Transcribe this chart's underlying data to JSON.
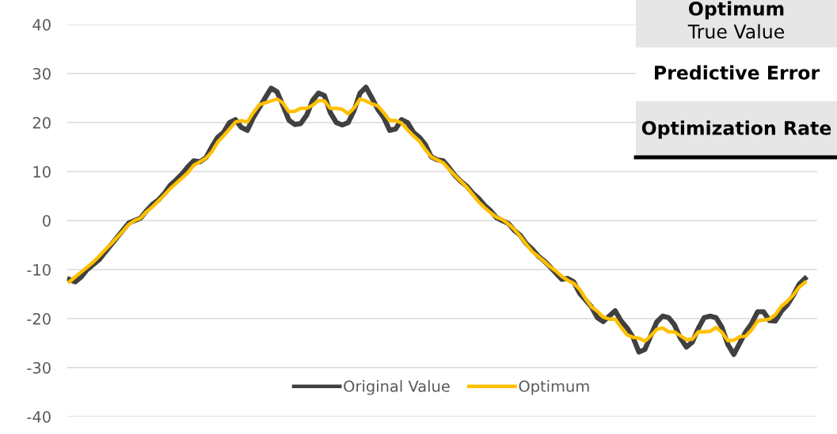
{
  "chart_data": {
    "type": "line",
    "categories": [
      null,
      null,
      null,
      null,
      null,
      null,
      null,
      null,
      null,
      null,
      null,
      null,
      null,
      null,
      null,
      null,
      null,
      null,
      null,
      null,
      null,
      null,
      null,
      null,
      null,
      null,
      null,
      null,
      null,
      null,
      null,
      null,
      null,
      null,
      null,
      null,
      null,
      null,
      null,
      null,
      null,
      null,
      null,
      null,
      null,
      null,
      null,
      null,
      null,
      null,
      null,
      null,
      null,
      null,
      null,
      null,
      null,
      null,
      null,
      null,
      null,
      null,
      null,
      null,
      null,
      null,
      null,
      null,
      null,
      null,
      null,
      null,
      null,
      null,
      null,
      null,
      null,
      null,
      null,
      null,
      null,
      null,
      null,
      null,
      null,
      null,
      null,
      null,
      null,
      null,
      null,
      null,
      null,
      null,
      null,
      null,
      null,
      null,
      null,
      null,
      null,
      null,
      null,
      null,
      null,
      null,
      null,
      null,
      null,
      null,
      null,
      null,
      null,
      null,
      null,
      null,
      null,
      null,
      null,
      null,
      null,
      null,
      null,
      null,
      null
    ],
    "series": [
      {
        "name": "Original Value",
        "color": "#404040",
        "values": [
          -12,
          -12.5,
          -11.5,
          -10,
          -9,
          -8,
          -6.5,
          -5,
          -3.5,
          -2,
          -0.5,
          0,
          0.5,
          2,
          3.3,
          4.2,
          5.5,
          7.2,
          8.3,
          9.5,
          11,
          12.2,
          12,
          12.8,
          15,
          17,
          18,
          20,
          20.6,
          19,
          18.4,
          21,
          23,
          25,
          27,
          26.3,
          23.5,
          20.5,
          19.6,
          19.8,
          21.5,
          24.5,
          26,
          25.5,
          22,
          20,
          19.5,
          20,
          22.5,
          26,
          27.2,
          25,
          22.7,
          21,
          18.4,
          18.7,
          20.6,
          20,
          18,
          17,
          15.5,
          13,
          12.4,
          12.2,
          10.8,
          9.2,
          8,
          7,
          5.6,
          4.5,
          3.1,
          2,
          0.6,
          0,
          -0.6,
          -2,
          -3,
          -4.7,
          -5.8,
          -7.2,
          -8.2,
          -9.4,
          -10.7,
          -12,
          -11.8,
          -12.5,
          -14.8,
          -16.2,
          -17.6,
          -19.8,
          -20.6,
          -19.5,
          -18.4,
          -20.5,
          -21.9,
          -23.8,
          -26.8,
          -26.3,
          -23.5,
          -20.7,
          -19.5,
          -19.8,
          -21.3,
          -24,
          -25.8,
          -24.8,
          -22,
          -19.8,
          -19.5,
          -19.8,
          -21.8,
          -25.3,
          -27.3,
          -25,
          -22.7,
          -21,
          -18.6,
          -18.6,
          -20.4,
          -20.5,
          -18.5,
          -17.2,
          -15.3,
          -13,
          -11.8
        ]
      },
      {
        "name": "Optimum",
        "color": "#ffc000",
        "values": [
          -12.5,
          -11.5,
          -10.5,
          -9.5,
          -8.5,
          -7.3,
          -6,
          -4.8,
          -3.5,
          -2.2,
          -0.8,
          0,
          0.5,
          1.8,
          2.8,
          4,
          5.2,
          6.5,
          7.6,
          8.7,
          9.8,
          11.3,
          12,
          12.7,
          14,
          16,
          17.3,
          18.7,
          20.1,
          20.4,
          20.1,
          22,
          23.6,
          24,
          24.4,
          24.8,
          24,
          22.2,
          22.3,
          22.9,
          22.9,
          23.5,
          24.5,
          24.4,
          22.9,
          22.9,
          22.7,
          21.8,
          23,
          24.8,
          24.4,
          23.8,
          23.4,
          22,
          20.4,
          20.4,
          19.9,
          18.5,
          17.3,
          16.2,
          14.5,
          13,
          12.4,
          11.8,
          10.5,
          9.2,
          8,
          6.8,
          5.3,
          3.8,
          2.6,
          1.6,
          0.7,
          0.2,
          -0.7,
          -1.8,
          -3.2,
          -4.8,
          -6.3,
          -7.3,
          -8.3,
          -9.4,
          -10.3,
          -11.4,
          -12.2,
          -12.8,
          -14,
          -15.9,
          -17.6,
          -18.5,
          -19.7,
          -20.1,
          -20.1,
          -21.8,
          -23.3,
          -23.8,
          -24,
          -24.6,
          -23.5,
          -22.2,
          -21.9,
          -22.7,
          -22.7,
          -23.5,
          -24.3,
          -24.2,
          -22.7,
          -22.7,
          -22.6,
          -21.8,
          -22.8,
          -24.5,
          -24.4,
          -23.7,
          -23.6,
          -22.3,
          -20.5,
          -20.3,
          -20.1,
          -19.2,
          -17.5,
          -16.5,
          -15.2,
          -13.6,
          -12.6
        ]
      }
    ],
    "ylim": [
      -40,
      40
    ],
    "yticks": [
      -40,
      -30,
      -20,
      -10,
      0,
      10,
      20,
      30,
      40
    ],
    "grid": "y",
    "legend": "bottom",
    "marker": "none",
    "line_style": "solid",
    "annotations": [
      "Optimum",
      "True Value",
      "Predictive Error",
      "Optimization Rate"
    ]
  }
}
